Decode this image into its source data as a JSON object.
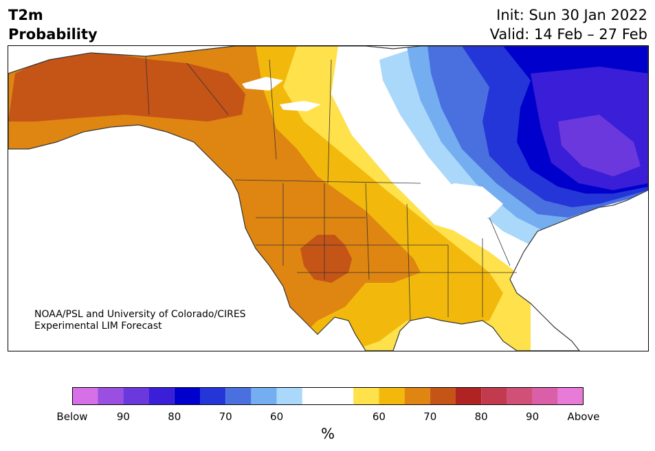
{
  "title": {
    "left_line1": "T2m",
    "left_line2": "Probability",
    "init": "Init: Sun 30 Jan 2022",
    "valid": "Valid: 14 Feb – 27 Feb"
  },
  "credit": {
    "line1": "NOAA/PSL and University of Colorado/CIRES",
    "line2": "Experimental LIM Forecast"
  },
  "colorbar": {
    "colors": [
      "#d670e6",
      "#9b4fe0",
      "#6a38dd",
      "#3a1ed8",
      "#0000cc",
      "#2536d8",
      "#4a70e0",
      "#74aef0",
      "#aad8fa",
      "#ffffff",
      "#ffe14c",
      "#f2b90c",
      "#df8512",
      "#c55417",
      "#b02323",
      "#c23a4e",
      "#d05078",
      "#da5fa8",
      "#e87ad8"
    ],
    "labels": [
      "Below",
      "90",
      "80",
      "70",
      "60",
      "",
      "60",
      "70",
      "80",
      "90",
      "Above"
    ],
    "unit": "%"
  },
  "map": {
    "colors": {
      "ocean": "#ffffff",
      "land_white": "#ffffff",
      "light_yellow": "#ffe14c",
      "yellow": "#f2b90c",
      "orange": "#df8512",
      "dark_orange": "#c55417",
      "lightest_blue": "#aad8fa",
      "light_blue": "#74aef0",
      "mid_blue": "#4a70e0",
      "blue": "#2536d8",
      "dark_blue": "#0000cc",
      "indigo": "#3a1ed8",
      "purple": "#6a38dd",
      "border": "#333333"
    }
  }
}
